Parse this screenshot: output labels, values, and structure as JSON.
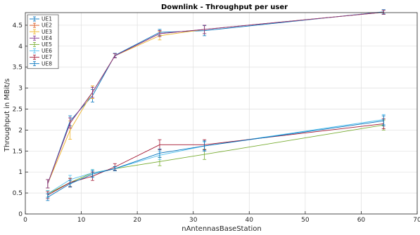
{
  "chart_data": {
    "type": "line",
    "title": "Downlink - Throughput per user",
    "xlabel": "nAntennasBaseStation",
    "ylabel": "Throughput in MBit/s",
    "xlim": [
      0,
      70
    ],
    "ylim": [
      0,
      4.8
    ],
    "xticks": [
      "0",
      "10",
      "20",
      "30",
      "40",
      "50",
      "60",
      "70"
    ],
    "yticks": [
      "0",
      "0.5",
      "1",
      "1.5",
      "2",
      "2.5",
      "3",
      "3.5",
      "4",
      "4.5"
    ],
    "grid": true,
    "legend_position": "top-left",
    "x": [
      4,
      8,
      12,
      16,
      24,
      32,
      64
    ],
    "series": [
      {
        "name": "UE1",
        "color": "#0072BD",
        "values": [
          0.72,
          2.22,
          2.82,
          3.78,
          4.33,
          4.37,
          4.82
        ],
        "errors": [
          0.1,
          0.12,
          0.15,
          0.05,
          0.07,
          0.12,
          0.05
        ]
      },
      {
        "name": "UE2",
        "color": "#D95319",
        "values": [
          0.72,
          2.17,
          2.9,
          3.77,
          4.3,
          4.4,
          4.81
        ],
        "errors": [
          0.1,
          0.12,
          0.15,
          0.05,
          0.07,
          0.1,
          0.05
        ]
      },
      {
        "name": "UE3",
        "color": "#EDB120",
        "values": [
          0.72,
          2.0,
          2.9,
          3.77,
          4.25,
          4.4,
          4.81
        ],
        "errors": [
          0.1,
          0.22,
          0.15,
          0.05,
          0.1,
          0.1,
          0.05
        ]
      },
      {
        "name": "UE4",
        "color": "#7E2F8E",
        "values": [
          0.72,
          2.17,
          2.9,
          3.77,
          4.3,
          4.4,
          4.81
        ],
        "errors": [
          0.1,
          0.12,
          0.12,
          0.05,
          0.07,
          0.1,
          0.05
        ]
      },
      {
        "name": "UE5",
        "color": "#77AC30",
        "values": [
          0.48,
          0.75,
          0.98,
          1.08,
          1.25,
          1.42,
          2.12
        ],
        "errors": [
          0.08,
          0.1,
          0.08,
          0.05,
          0.1,
          0.12,
          0.12
        ]
      },
      {
        "name": "UE6",
        "color": "#4DBEEE",
        "values": [
          0.48,
          0.82,
          0.98,
          1.08,
          1.4,
          1.62,
          2.25
        ],
        "errors": [
          0.08,
          0.1,
          0.08,
          0.05,
          0.1,
          0.1,
          0.12
        ]
      },
      {
        "name": "UE7",
        "color": "#A2142F",
        "values": [
          0.45,
          0.75,
          0.9,
          1.12,
          1.65,
          1.65,
          2.15
        ],
        "errors": [
          0.08,
          0.1,
          0.1,
          0.08,
          0.12,
          0.12,
          0.12
        ]
      },
      {
        "name": "UE8",
        "color": "#0072BD",
        "values": [
          0.4,
          0.72,
          0.95,
          1.08,
          1.45,
          1.62,
          2.22
        ],
        "errors": [
          0.08,
          0.08,
          0.08,
          0.05,
          0.1,
          0.12,
          0.12
        ]
      }
    ]
  }
}
